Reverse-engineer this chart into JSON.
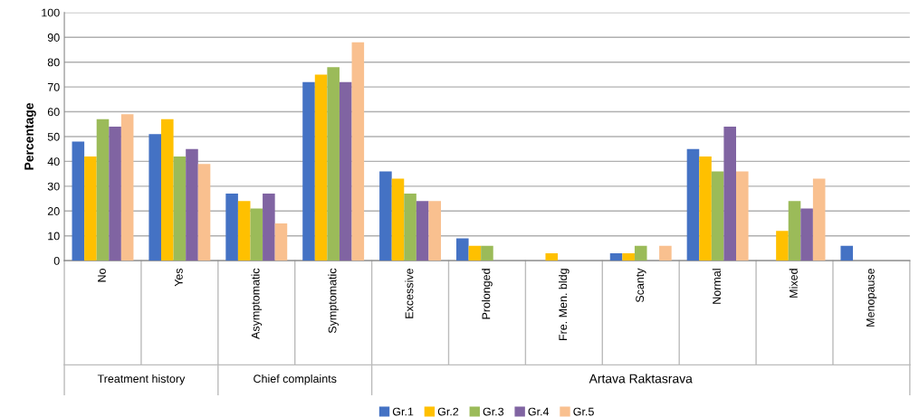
{
  "chart_data": {
    "type": "bar",
    "ylabel": "Percentage",
    "categories": [
      "No",
      "Yes",
      "Asymptomatic",
      "Symptomatic",
      "Excessive",
      "Prolonged",
      "Fre. Men. bldg",
      "Scanty",
      "Normal",
      "Mixed",
      "Menopause"
    ],
    "series": [
      {
        "name": "Gr.1",
        "color": "#4472c4",
        "values": [
          48,
          51,
          27,
          72,
          36,
          9,
          0,
          3,
          45,
          0,
          6
        ]
      },
      {
        "name": "Gr.2",
        "color": "#ffc000",
        "values": [
          42,
          57,
          24,
          75,
          33,
          6,
          3,
          3,
          42,
          12,
          0
        ]
      },
      {
        "name": "Gr.3",
        "color": "#9bbb59",
        "values": [
          57,
          42,
          21,
          78,
          27,
          6,
          0,
          6,
          36,
          24,
          0
        ]
      },
      {
        "name": "Gr.4",
        "color": "#8064a2",
        "values": [
          54,
          45,
          27,
          72,
          24,
          0,
          0,
          0,
          54,
          21,
          0
        ]
      },
      {
        "name": "Gr.5",
        "color": "#f9c08f",
        "values": [
          59,
          39,
          15,
          88,
          24,
          0,
          0,
          6,
          36,
          33,
          0
        ]
      }
    ],
    "annotations": [
      "Treatment history",
      "Chief complaints",
      "Artava Raktasrava"
    ],
    "ylim": [
      0,
      100
    ],
    "yticks": [
      0,
      10,
      20,
      30,
      40,
      50,
      60,
      70,
      80,
      90,
      100
    ],
    "grid": "y",
    "legend": "bottom"
  }
}
